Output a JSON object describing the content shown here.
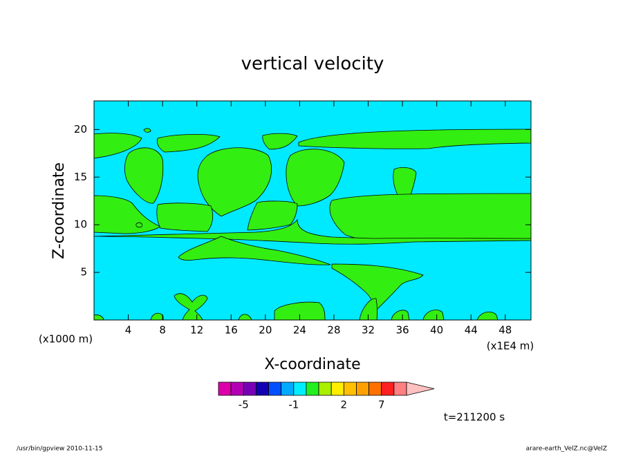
{
  "chart_data": {
    "type": "contour",
    "title": "vertical velocity",
    "xlabel": "X-coordinate",
    "ylabel": "Z-coordinate",
    "xunit": "(x1E4 m)",
    "yunit": "(x1000 m)",
    "xlim": [
      0,
      51
    ],
    "ylim": [
      0,
      23
    ],
    "xticks": [
      4,
      8,
      12,
      16,
      20,
      24,
      28,
      32,
      36,
      40,
      44,
      48
    ],
    "yticks": [
      5,
      10,
      15,
      20
    ],
    "background_color": "#00eaff",
    "field_color": "#33ee11",
    "colorbar": {
      "colors": [
        "#dd00aa",
        "#b400b4",
        "#7800b4",
        "#1400b4",
        "#0050ff",
        "#00aaff",
        "#00eeff",
        "#22ee22",
        "#aaee00",
        "#ffee00",
        "#ffc000",
        "#ffa000",
        "#ff7000",
        "#ff2020",
        "#ff8080",
        "#ffc0c0"
      ],
      "levels": [
        -7,
        -5,
        -4,
        -3,
        -2,
        -1,
        -0.5,
        0.5,
        1,
        2,
        3,
        5,
        7,
        10,
        15
      ],
      "ticks": [
        -5,
        -1,
        2,
        7
      ]
    },
    "annotations": [
      "t=211200 s",
      "/usr/bin/gpview   2010-11-15",
      "arare-earth_VelZ.nc@VelZ"
    ]
  }
}
